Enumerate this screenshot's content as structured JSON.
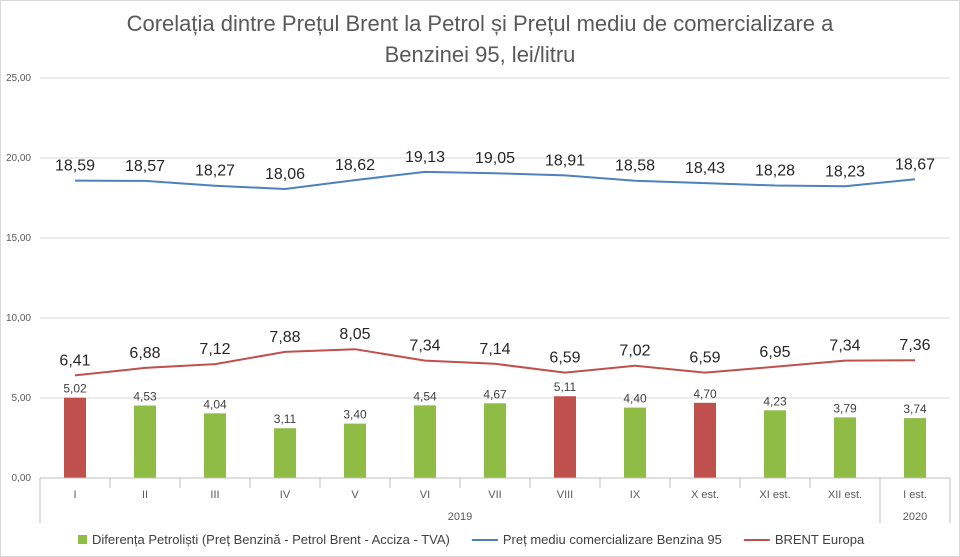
{
  "chart_data": {
    "type": "bar",
    "title_lines": [
      "Corelația dintre Prețul Brent la Petrol și Prețul mediu de comercializare a",
      "Benzinei 95, lei/litru"
    ],
    "categories": [
      "I",
      "II",
      "III",
      "IV",
      "V",
      "VI",
      "VII",
      "VIII",
      "IX",
      "X est.",
      "XI est.",
      "XII est.",
      "I est."
    ],
    "year_groups": [
      {
        "label": "2019",
        "count": 12
      },
      {
        "label": "2020",
        "count": 1
      }
    ],
    "ylim": [
      0,
      25
    ],
    "y_ticks": [
      "0,00",
      "5,00",
      "10,00",
      "15,00",
      "20,00",
      "25,00"
    ],
    "grid": true,
    "legend_position": "bottom",
    "series": [
      {
        "name": "Diferența Petroliști (Preț Benzină - Petrol Brent - Acciza - TVA)",
        "type": "bar",
        "color": "#8FBC45",
        "highlight_color": "#C0504D",
        "highlight": [
          true,
          false,
          false,
          false,
          false,
          false,
          false,
          true,
          false,
          true,
          false,
          false,
          false
        ],
        "values": [
          5.02,
          4.53,
          4.04,
          3.11,
          3.4,
          4.54,
          4.67,
          5.11,
          4.4,
          4.7,
          4.23,
          3.79,
          3.74
        ],
        "labels": [
          "5,02",
          "4,53",
          "4,04",
          "3,11",
          "3,40",
          "4,54",
          "4,67",
          "5,11",
          "4,40",
          "4,70",
          "4,23",
          "3,79",
          "3,74"
        ]
      },
      {
        "name": "Preț mediu comercializare Benzina 95",
        "type": "line",
        "color": "#4F81BD",
        "values": [
          18.59,
          18.57,
          18.27,
          18.06,
          18.62,
          19.13,
          19.05,
          18.91,
          18.58,
          18.43,
          18.28,
          18.23,
          18.67
        ],
        "labels": [
          "18,59",
          "18,57",
          "18,27",
          "18,06",
          "18,62",
          "19,13",
          "19,05",
          "18,91",
          "18,58",
          "18,43",
          "18,28",
          "18,23",
          "18,67"
        ]
      },
      {
        "name": "BRENT Europa",
        "type": "line",
        "color": "#C0504D",
        "values": [
          6.41,
          6.88,
          7.12,
          7.88,
          8.05,
          7.34,
          7.14,
          6.59,
          7.02,
          6.59,
          6.95,
          7.34,
          7.36
        ],
        "labels": [
          "6,41",
          "6,88",
          "7,12",
          "7,88",
          "8,05",
          "7,34",
          "7,14",
          "6,59",
          "7,02",
          "6,59",
          "6,95",
          "7,34",
          "7,36"
        ]
      }
    ]
  }
}
